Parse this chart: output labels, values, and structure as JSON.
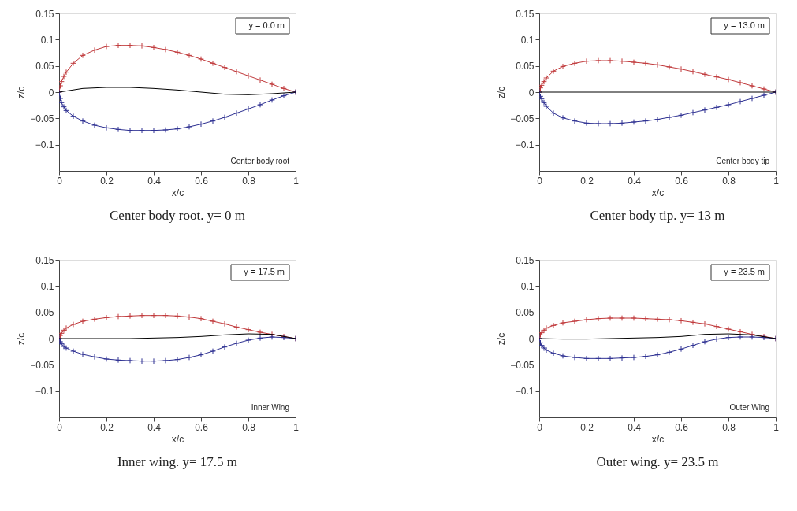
{
  "chart_data": [
    {
      "type": "line",
      "title": "Center body root. y= 0 m",
      "xlabel": "x/c",
      "ylabel": "z/c",
      "xlim": [
        0,
        1
      ],
      "ylim": [
        -0.15,
        0.15
      ],
      "xticks": [
        0,
        0.2,
        0.4,
        0.6,
        0.8,
        1
      ],
      "yticks": [
        -0.1,
        -0.05,
        0,
        0.05,
        0.1,
        0.15
      ],
      "annotations": [
        "y = 0.0 m",
        "Center body root"
      ],
      "series": [
        {
          "color": "#c0393b",
          "marker": "cross",
          "x": [
            0,
            0.005,
            0.01,
            0.02,
            0.03,
            0.06,
            0.1,
            0.15,
            0.2,
            0.25,
            0.3,
            0.35,
            0.4,
            0.45,
            0.5,
            0.55,
            0.6,
            0.65,
            0.7,
            0.75,
            0.8,
            0.85,
            0.9,
            0.95,
            1
          ],
          "values": [
            0,
            0.012,
            0.02,
            0.03,
            0.038,
            0.055,
            0.07,
            0.08,
            0.087,
            0.089,
            0.089,
            0.088,
            0.085,
            0.081,
            0.076,
            0.07,
            0.063,
            0.055,
            0.047,
            0.039,
            0.031,
            0.023,
            0.015,
            0.007,
            0
          ]
        },
        {
          "color": "#2e3192",
          "marker": "cross",
          "x": [
            0,
            0.005,
            0.01,
            0.02,
            0.03,
            0.06,
            0.1,
            0.15,
            0.2,
            0.25,
            0.3,
            0.35,
            0.4,
            0.45,
            0.5,
            0.55,
            0.6,
            0.65,
            0.7,
            0.75,
            0.8,
            0.85,
            0.9,
            0.95,
            1
          ],
          "values": [
            0,
            -0.012,
            -0.02,
            -0.028,
            -0.035,
            -0.046,
            -0.055,
            -0.063,
            -0.068,
            -0.071,
            -0.073,
            -0.073,
            -0.073,
            -0.072,
            -0.07,
            -0.066,
            -0.061,
            -0.055,
            -0.048,
            -0.04,
            -0.032,
            -0.024,
            -0.015,
            -0.007,
            0
          ]
        },
        {
          "color": "#000000",
          "marker": "none",
          "x": [
            0,
            0.1,
            0.2,
            0.3,
            0.4,
            0.5,
            0.6,
            0.7,
            0.8,
            0.9,
            1
          ],
          "values": [
            0,
            0.007,
            0.009,
            0.009,
            0.007,
            0.004,
            0,
            -0.004,
            -0.005,
            -0.003,
            0
          ]
        }
      ]
    },
    {
      "type": "line",
      "title": "Center body tip. y= 13 m",
      "xlabel": "x/c",
      "ylabel": "z/c",
      "xlim": [
        0,
        1
      ],
      "ylim": [
        -0.15,
        0.15
      ],
      "xticks": [
        0,
        0.2,
        0.4,
        0.6,
        0.8,
        1
      ],
      "yticks": [
        -0.1,
        -0.05,
        0,
        0.05,
        0.1,
        0.15
      ],
      "annotations": [
        "y = 13.0 m",
        "Center body tip"
      ],
      "series": [
        {
          "color": "#c0393b",
          "marker": "cross",
          "x": [
            0,
            0.005,
            0.01,
            0.02,
            0.03,
            0.06,
            0.1,
            0.15,
            0.2,
            0.25,
            0.3,
            0.35,
            0.4,
            0.45,
            0.5,
            0.55,
            0.6,
            0.65,
            0.7,
            0.75,
            0.8,
            0.85,
            0.9,
            0.95,
            1
          ],
          "values": [
            0,
            0.008,
            0.013,
            0.02,
            0.027,
            0.04,
            0.049,
            0.055,
            0.059,
            0.06,
            0.06,
            0.059,
            0.057,
            0.055,
            0.052,
            0.048,
            0.044,
            0.039,
            0.034,
            0.029,
            0.024,
            0.018,
            0.012,
            0.006,
            0
          ]
        },
        {
          "color": "#2e3192",
          "marker": "cross",
          "x": [
            0,
            0.005,
            0.01,
            0.02,
            0.03,
            0.06,
            0.1,
            0.15,
            0.2,
            0.25,
            0.3,
            0.35,
            0.4,
            0.45,
            0.5,
            0.55,
            0.6,
            0.65,
            0.7,
            0.75,
            0.8,
            0.85,
            0.9,
            0.95,
            1
          ],
          "values": [
            0,
            -0.008,
            -0.013,
            -0.02,
            -0.027,
            -0.04,
            -0.049,
            -0.055,
            -0.059,
            -0.06,
            -0.06,
            -0.059,
            -0.057,
            -0.055,
            -0.052,
            -0.048,
            -0.044,
            -0.039,
            -0.034,
            -0.029,
            -0.024,
            -0.018,
            -0.012,
            -0.006,
            0
          ]
        },
        {
          "color": "#000000",
          "marker": "none",
          "x": [
            0,
            1
          ],
          "values": [
            0,
            0
          ]
        }
      ]
    },
    {
      "type": "line",
      "title": "Inner wing. y= 17.5 m",
      "xlabel": "x/c",
      "ylabel": "z/c",
      "xlim": [
        0,
        1
      ],
      "ylim": [
        -0.15,
        0.15
      ],
      "xticks": [
        0,
        0.2,
        0.4,
        0.6,
        0.8,
        1
      ],
      "yticks": [
        -0.1,
        -0.05,
        0,
        0.05,
        0.1,
        0.15
      ],
      "annotations": [
        "y = 17.5 m",
        "Inner Wing"
      ],
      "series": [
        {
          "color": "#c0393b",
          "marker": "cross",
          "x": [
            0,
            0.005,
            0.01,
            0.02,
            0.03,
            0.06,
            0.1,
            0.15,
            0.2,
            0.25,
            0.3,
            0.35,
            0.4,
            0.45,
            0.5,
            0.55,
            0.6,
            0.65,
            0.7,
            0.75,
            0.8,
            0.85,
            0.9,
            0.95,
            1
          ],
          "values": [
            0,
            0.006,
            0.01,
            0.016,
            0.02,
            0.027,
            0.033,
            0.037,
            0.04,
            0.042,
            0.043,
            0.044,
            0.044,
            0.044,
            0.043,
            0.041,
            0.038,
            0.033,
            0.028,
            0.022,
            0.017,
            0.012,
            0.008,
            0.004,
            0
          ]
        },
        {
          "color": "#2e3192",
          "marker": "cross",
          "x": [
            0,
            0.005,
            0.01,
            0.02,
            0.03,
            0.06,
            0.1,
            0.15,
            0.2,
            0.25,
            0.3,
            0.35,
            0.4,
            0.45,
            0.5,
            0.55,
            0.6,
            0.65,
            0.7,
            0.75,
            0.8,
            0.85,
            0.9,
            0.95,
            1
          ],
          "values": [
            0,
            -0.006,
            -0.01,
            -0.015,
            -0.018,
            -0.024,
            -0.03,
            -0.035,
            -0.039,
            -0.041,
            -0.042,
            -0.043,
            -0.043,
            -0.042,
            -0.04,
            -0.036,
            -0.031,
            -0.024,
            -0.016,
            -0.009,
            -0.003,
            0.001,
            0.003,
            0.002,
            0
          ]
        },
        {
          "color": "#000000",
          "marker": "none",
          "x": [
            0,
            0.1,
            0.2,
            0.3,
            0.4,
            0.5,
            0.6,
            0.7,
            0.8,
            0.9,
            1
          ],
          "values": [
            0,
            0,
            0,
            0,
            0.001,
            0.002,
            0.004,
            0.007,
            0.009,
            0.008,
            0
          ]
        }
      ]
    },
    {
      "type": "line",
      "title": "Outer wing. y= 23.5 m",
      "xlabel": "x/c",
      "ylabel": "z/c",
      "xlim": [
        0,
        1
      ],
      "ylim": [
        -0.15,
        0.15
      ],
      "xticks": [
        0,
        0.2,
        0.4,
        0.6,
        0.8,
        1
      ],
      "yticks": [
        -0.1,
        -0.05,
        0,
        0.05,
        0.1,
        0.15
      ],
      "annotations": [
        "y = 23.5 m",
        "Outer Wing"
      ],
      "series": [
        {
          "color": "#c0393b",
          "marker": "cross",
          "x": [
            0,
            0.005,
            0.01,
            0.02,
            0.03,
            0.06,
            0.1,
            0.15,
            0.2,
            0.25,
            0.3,
            0.35,
            0.4,
            0.45,
            0.5,
            0.55,
            0.6,
            0.65,
            0.7,
            0.75,
            0.8,
            0.85,
            0.9,
            0.95,
            1
          ],
          "values": [
            0,
            0.007,
            0.011,
            0.016,
            0.02,
            0.025,
            0.03,
            0.033,
            0.036,
            0.038,
            0.039,
            0.039,
            0.039,
            0.038,
            0.037,
            0.036,
            0.034,
            0.031,
            0.028,
            0.023,
            0.018,
            0.013,
            0.008,
            0.004,
            0
          ]
        },
        {
          "color": "#2e3192",
          "marker": "cross",
          "x": [
            0,
            0.005,
            0.01,
            0.02,
            0.03,
            0.06,
            0.1,
            0.15,
            0.2,
            0.25,
            0.3,
            0.35,
            0.4,
            0.45,
            0.5,
            0.55,
            0.6,
            0.65,
            0.7,
            0.75,
            0.8,
            0.85,
            0.9,
            0.95,
            1
          ],
          "values": [
            0,
            -0.008,
            -0.013,
            -0.018,
            -0.022,
            -0.028,
            -0.033,
            -0.036,
            -0.038,
            -0.038,
            -0.038,
            -0.037,
            -0.036,
            -0.034,
            -0.031,
            -0.026,
            -0.02,
            -0.013,
            -0.006,
            -0.001,
            0.002,
            0.003,
            0.003,
            0.002,
            0
          ]
        },
        {
          "color": "#000000",
          "marker": "none",
          "x": [
            0,
            0.1,
            0.2,
            0.3,
            0.4,
            0.5,
            0.6,
            0.7,
            0.8,
            0.9,
            1
          ],
          "values": [
            0,
            -0.001,
            -0.001,
            0,
            0.001,
            0.002,
            0.004,
            0.008,
            0.009,
            0.007,
            0
          ]
        }
      ]
    }
  ]
}
